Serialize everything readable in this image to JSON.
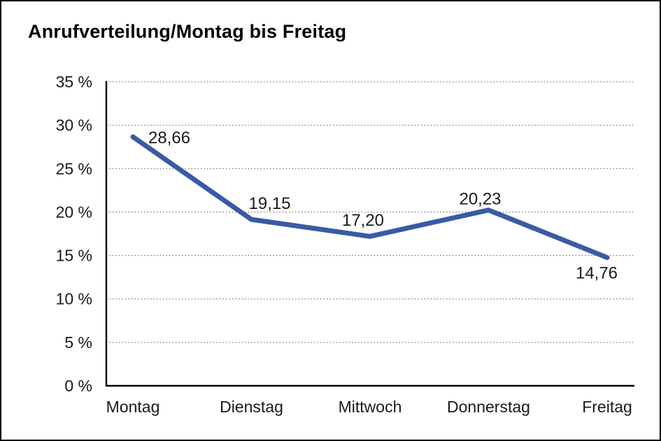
{
  "page": {
    "title": "Anrufverteilung/Montag bis Freitag"
  },
  "chart_data": {
    "type": "line",
    "title": "Anrufverteilung/Montag bis Freitag",
    "categories": [
      "Montag",
      "Dienstag",
      "Mittwoch",
      "Donnerstag",
      "Freitag"
    ],
    "values": [
      28.66,
      19.15,
      17.2,
      20.23,
      14.76
    ],
    "data_labels": [
      "28,66",
      "19,15",
      "17,20",
      "20,23",
      "14,76"
    ],
    "series_name": "Anrufverteilung",
    "xlabel": "",
    "ylabel": "",
    "ylim": [
      0,
      35
    ],
    "y_tick_step": 5,
    "y_tick_labels": [
      "0 %",
      "5 %",
      "10 %",
      "15 %",
      "20 %",
      "25 %",
      "30 %",
      "35 %"
    ],
    "grid": "horizontal-dotted",
    "legend": "none",
    "line_color": "#3a5aa6",
    "text_color": "#1a1a1a"
  }
}
